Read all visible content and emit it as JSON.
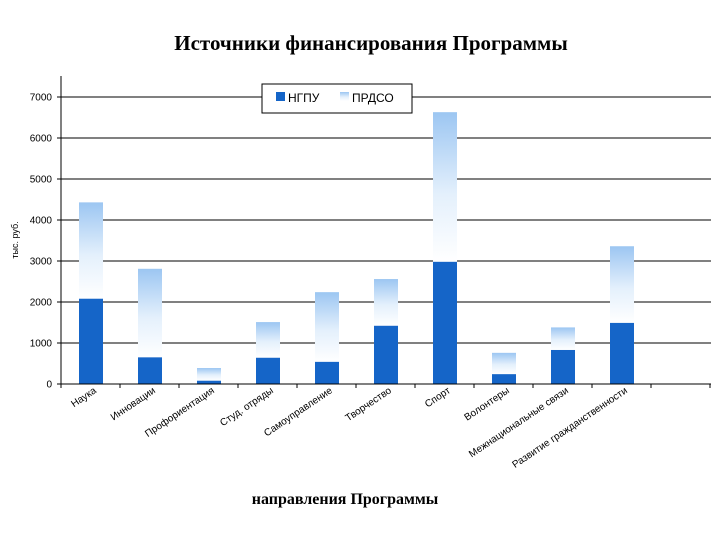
{
  "chart_data": {
    "type": "bar",
    "stacked": true,
    "title": "Источники финансирования Программы",
    "xlabel": "направления  Программы",
    "ylabel": "тыс. руб.",
    "ylim": [
      0,
      7000
    ],
    "yticks": [
      0,
      1000,
      2000,
      3000,
      4000,
      5000,
      6000,
      7000
    ],
    "grid": true,
    "legend_position": "top-center",
    "categories": [
      "Наука",
      "Инновации",
      "Профориентация",
      "Студ. отряды",
      "Самоуправление",
      "Творчество",
      "Спорт",
      "Волонтеры",
      "Межнациональные связи",
      "Развитие гражданственности"
    ],
    "series": [
      {
        "name": "НГПУ",
        "color": "#1565c8",
        "values": [
          2080,
          650,
          80,
          640,
          540,
          1420,
          2980,
          240,
          830,
          1490
        ]
      },
      {
        "name": "ПРДСО",
        "color": "#a8ccf4",
        "values": [
          2350,
          2160,
          310,
          870,
          1700,
          1140,
          3650,
          520,
          550,
          1870
        ]
      }
    ]
  }
}
